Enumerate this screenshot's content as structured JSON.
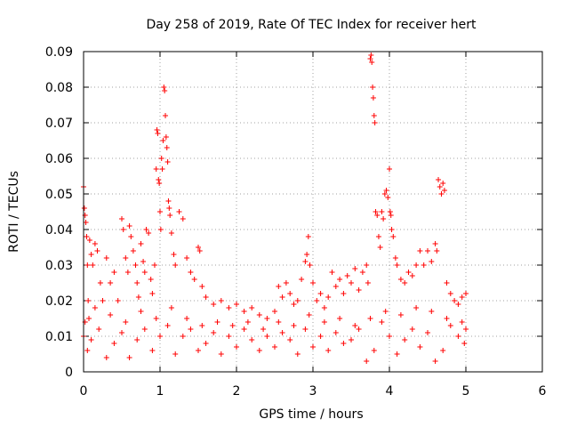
{
  "chart_data": {
    "type": "scatter",
    "title": "Day 258 of 2019, Rate Of TEC Index for receiver hert",
    "xlabel": "GPS time / hours",
    "ylabel": "ROTI / TECUs",
    "xlim": [
      0,
      6
    ],
    "ylim": [
      0,
      0.09
    ],
    "xticks": [
      "0",
      "1",
      "2",
      "3",
      "4",
      "5",
      "6"
    ],
    "yticks": [
      "0",
      "0.01",
      "0.02",
      "0.03",
      "0.04",
      "0.05",
      "0.06",
      "0.07",
      "0.08",
      "0.09"
    ],
    "grid": true,
    "marker": "+",
    "series": [
      {
        "name": "ROTI",
        "color": "#ff0000",
        "points": [
          [
            0.0,
            0.052
          ],
          [
            0.01,
            0.046
          ],
          [
            0.02,
            0.044
          ],
          [
            0.03,
            0.042
          ],
          [
            0.04,
            0.038
          ],
          [
            0.05,
            0.03
          ],
          [
            0.06,
            0.02
          ],
          [
            0.07,
            0.015
          ],
          [
            0.08,
            0.037
          ],
          [
            0.1,
            0.033
          ],
          [
            0.12,
            0.03
          ],
          [
            0.15,
            0.036
          ],
          [
            0.18,
            0.034
          ],
          [
            0.22,
            0.025
          ],
          [
            0.25,
            0.02
          ],
          [
            0.3,
            0.032
          ],
          [
            0.35,
            0.025
          ],
          [
            0.4,
            0.028
          ],
          [
            0.45,
            0.02
          ],
          [
            0.5,
            0.043
          ],
          [
            0.52,
            0.04
          ],
          [
            0.55,
            0.032
          ],
          [
            0.58,
            0.028
          ],
          [
            0.6,
            0.041
          ],
          [
            0.62,
            0.038
          ],
          [
            0.65,
            0.034
          ],
          [
            0.68,
            0.03
          ],
          [
            0.7,
            0.025
          ],
          [
            0.72,
            0.021
          ],
          [
            0.75,
            0.036
          ],
          [
            0.78,
            0.031
          ],
          [
            0.8,
            0.028
          ],
          [
            0.82,
            0.04
          ],
          [
            0.85,
            0.039
          ],
          [
            0.88,
            0.026
          ],
          [
            0.9,
            0.022
          ],
          [
            0.93,
            0.03
          ],
          [
            0.95,
            0.057
          ],
          [
            0.96,
            0.068
          ],
          [
            0.97,
            0.067
          ],
          [
            0.98,
            0.054
          ],
          [
            0.99,
            0.053
          ],
          [
            1.0,
            0.045
          ],
          [
            1.01,
            0.04
          ],
          [
            1.02,
            0.06
          ],
          [
            1.03,
            0.057
          ],
          [
            1.04,
            0.065
          ],
          [
            1.05,
            0.08
          ],
          [
            1.06,
            0.079
          ],
          [
            1.07,
            0.072
          ],
          [
            1.08,
            0.066
          ],
          [
            1.09,
            0.063
          ],
          [
            1.1,
            0.059
          ],
          [
            1.11,
            0.048
          ],
          [
            1.12,
            0.046
          ],
          [
            1.13,
            0.044
          ],
          [
            1.15,
            0.039
          ],
          [
            1.18,
            0.033
          ],
          [
            1.2,
            0.03
          ],
          [
            1.25,
            0.045
          ],
          [
            1.3,
            0.043
          ],
          [
            1.35,
            0.032
          ],
          [
            1.4,
            0.028
          ],
          [
            1.45,
            0.026
          ],
          [
            1.5,
            0.035
          ],
          [
            1.52,
            0.034
          ],
          [
            1.55,
            0.024
          ],
          [
            1.6,
            0.021
          ],
          [
            1.7,
            0.019
          ],
          [
            1.8,
            0.02
          ],
          [
            1.9,
            0.018
          ],
          [
            2.0,
            0.019
          ],
          [
            2.1,
            0.017
          ],
          [
            2.2,
            0.018
          ],
          [
            2.3,
            0.016
          ],
          [
            2.4,
            0.015
          ],
          [
            2.5,
            0.017
          ],
          [
            2.55,
            0.024
          ],
          [
            2.6,
            0.021
          ],
          [
            2.65,
            0.025
          ],
          [
            2.7,
            0.022
          ],
          [
            2.75,
            0.019
          ],
          [
            2.8,
            0.02
          ],
          [
            2.85,
            0.026
          ],
          [
            2.9,
            0.031
          ],
          [
            2.92,
            0.033
          ],
          [
            2.94,
            0.038
          ],
          [
            2.96,
            0.03
          ],
          [
            3.0,
            0.025
          ],
          [
            3.05,
            0.02
          ],
          [
            3.1,
            0.022
          ],
          [
            3.15,
            0.018
          ],
          [
            3.2,
            0.021
          ],
          [
            3.25,
            0.028
          ],
          [
            3.3,
            0.024
          ],
          [
            3.35,
            0.026
          ],
          [
            3.4,
            0.022
          ],
          [
            3.45,
            0.027
          ],
          [
            3.5,
            0.025
          ],
          [
            3.55,
            0.029
          ],
          [
            3.6,
            0.023
          ],
          [
            3.65,
            0.028
          ],
          [
            3.7,
            0.03
          ],
          [
            3.72,
            0.025
          ],
          [
            3.75,
            0.088
          ],
          [
            3.76,
            0.089
          ],
          [
            3.77,
            0.087
          ],
          [
            3.78,
            0.08
          ],
          [
            3.79,
            0.077
          ],
          [
            3.8,
            0.072
          ],
          [
            3.81,
            0.07
          ],
          [
            3.82,
            0.045
          ],
          [
            3.84,
            0.044
          ],
          [
            3.86,
            0.038
          ],
          [
            3.88,
            0.035
          ],
          [
            3.9,
            0.045
          ],
          [
            3.92,
            0.043
          ],
          [
            3.94,
            0.05
          ],
          [
            3.96,
            0.051
          ],
          [
            3.98,
            0.049
          ],
          [
            4.0,
            0.057
          ],
          [
            4.01,
            0.045
          ],
          [
            4.02,
            0.044
          ],
          [
            4.03,
            0.04
          ],
          [
            4.05,
            0.038
          ],
          [
            4.08,
            0.032
          ],
          [
            4.1,
            0.03
          ],
          [
            4.15,
            0.026
          ],
          [
            4.2,
            0.025
          ],
          [
            4.25,
            0.028
          ],
          [
            4.3,
            0.027
          ],
          [
            4.35,
            0.03
          ],
          [
            4.4,
            0.034
          ],
          [
            4.45,
            0.03
          ],
          [
            4.5,
            0.034
          ],
          [
            4.55,
            0.031
          ],
          [
            4.6,
            0.036
          ],
          [
            4.62,
            0.034
          ],
          [
            4.64,
            0.054
          ],
          [
            4.66,
            0.052
          ],
          [
            4.68,
            0.05
          ],
          [
            4.7,
            0.053
          ],
          [
            4.72,
            0.051
          ],
          [
            4.75,
            0.025
          ],
          [
            4.8,
            0.022
          ],
          [
            4.85,
            0.02
          ],
          [
            4.9,
            0.019
          ],
          [
            4.95,
            0.021
          ],
          [
            5.0,
            0.022
          ],
          [
            5.0,
            0.012
          ],
          [
            4.98,
            0.008
          ],
          [
            4.9,
            0.01
          ],
          [
            4.8,
            0.013
          ],
          [
            4.7,
            0.006
          ],
          [
            4.6,
            0.003
          ],
          [
            4.5,
            0.011
          ],
          [
            4.4,
            0.007
          ],
          [
            4.3,
            0.012
          ],
          [
            4.2,
            0.009
          ],
          [
            4.1,
            0.005
          ],
          [
            4.0,
            0.01
          ],
          [
            3.9,
            0.014
          ],
          [
            3.8,
            0.006
          ],
          [
            3.7,
            0.003
          ],
          [
            3.6,
            0.012
          ],
          [
            3.5,
            0.009
          ],
          [
            3.4,
            0.008
          ],
          [
            3.3,
            0.011
          ],
          [
            3.2,
            0.006
          ],
          [
            3.1,
            0.01
          ],
          [
            3.0,
            0.007
          ],
          [
            2.9,
            0.012
          ],
          [
            2.8,
            0.005
          ],
          [
            2.7,
            0.009
          ],
          [
            2.6,
            0.011
          ],
          [
            2.5,
            0.007
          ],
          [
            2.4,
            0.01
          ],
          [
            2.3,
            0.006
          ],
          [
            2.2,
            0.009
          ],
          [
            2.1,
            0.012
          ],
          [
            2.0,
            0.007
          ],
          [
            1.9,
            0.01
          ],
          [
            1.8,
            0.005
          ],
          [
            1.7,
            0.011
          ],
          [
            1.6,
            0.008
          ],
          [
            1.5,
            0.006
          ],
          [
            1.4,
            0.012
          ],
          [
            1.3,
            0.01
          ],
          [
            1.2,
            0.005
          ],
          [
            1.1,
            0.013
          ],
          [
            1.0,
            0.01
          ],
          [
            0.9,
            0.006
          ],
          [
            0.8,
            0.012
          ],
          [
            0.7,
            0.009
          ],
          [
            0.6,
            0.004
          ],
          [
            0.5,
            0.011
          ],
          [
            0.4,
            0.008
          ],
          [
            0.3,
            0.004
          ],
          [
            0.2,
            0.012
          ],
          [
            0.1,
            0.009
          ],
          [
            0.05,
            0.006
          ],
          [
            0.02,
            0.014
          ],
          [
            0.0,
            0.01
          ],
          [
            0.15,
            0.018
          ],
          [
            0.35,
            0.016
          ],
          [
            0.55,
            0.014
          ],
          [
            0.75,
            0.017
          ],
          [
            0.95,
            0.015
          ],
          [
            1.15,
            0.018
          ],
          [
            1.35,
            0.015
          ],
          [
            1.55,
            0.013
          ],
          [
            1.75,
            0.014
          ],
          [
            1.95,
            0.013
          ],
          [
            2.15,
            0.014
          ],
          [
            2.35,
            0.012
          ],
          [
            2.55,
            0.014
          ],
          [
            2.75,
            0.013
          ],
          [
            2.95,
            0.016
          ],
          [
            3.15,
            0.014
          ],
          [
            3.35,
            0.015
          ],
          [
            3.55,
            0.013
          ],
          [
            3.75,
            0.015
          ],
          [
            3.95,
            0.017
          ],
          [
            4.15,
            0.016
          ],
          [
            4.35,
            0.018
          ],
          [
            4.55,
            0.017
          ],
          [
            4.75,
            0.015
          ],
          [
            4.95,
            0.014
          ]
        ]
      }
    ]
  }
}
